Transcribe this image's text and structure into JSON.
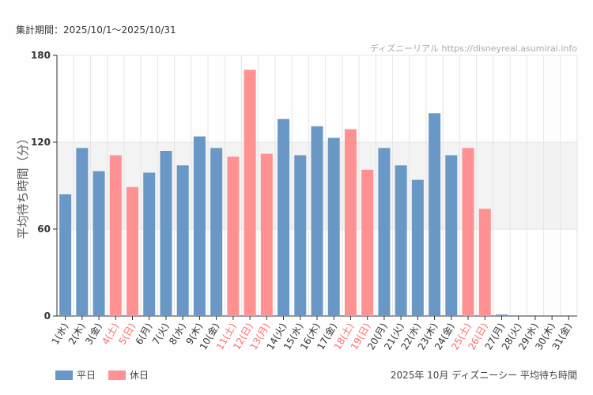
{
  "header": {
    "period": "集計期間：2025/10/1〜2025/10/31",
    "credit": "ディズニーリアル https://disneyreal.asumirai.info"
  },
  "legend": {
    "weekday": "平日",
    "holiday": "休日"
  },
  "caption": "2025年 10月 ディズニーシー 平均待ち時間",
  "colors": {
    "weekday": "#6a98c6",
    "holiday": "#ff9193",
    "holiday_label": "#ff6b6e"
  },
  "chart_data": {
    "type": "bar",
    "title": "2025年 10月 ディズニーシー 平均待ち時間",
    "ylabel": "平均待ち時間（分）",
    "ylim": [
      0,
      180
    ],
    "yticks": [
      "0",
      "60",
      "120",
      "180"
    ],
    "categories": [
      "1(水)",
      "2(木)",
      "3(金)",
      "4(土)",
      "5(日)",
      "6(月)",
      "7(火)",
      "8(水)",
      "9(木)",
      "10(金)",
      "11(土)",
      "12(日)",
      "13(月)",
      "14(火)",
      "15(水)",
      "16(木)",
      "17(金)",
      "18(土)",
      "19(日)",
      "20(月)",
      "21(火)",
      "22(水)",
      "23(木)",
      "24(金)",
      "25(土)",
      "26(日)",
      "27(月)",
      "28(火)",
      "29(水)",
      "30(木)",
      "31(金)"
    ],
    "values": [
      84,
      116,
      100,
      111,
      89,
      99,
      114,
      104,
      124,
      116,
      110,
      170,
      112,
      136,
      111,
      131,
      123,
      129,
      101,
      116,
      104,
      94,
      140,
      111,
      116,
      74,
      1,
      0,
      0,
      0,
      0
    ],
    "holiday": [
      false,
      false,
      false,
      true,
      true,
      false,
      false,
      false,
      false,
      false,
      true,
      true,
      true,
      false,
      false,
      false,
      false,
      true,
      true,
      false,
      false,
      false,
      false,
      false,
      true,
      true,
      false,
      false,
      false,
      false,
      false
    ],
    "highlight_band": [
      60,
      120
    ]
  }
}
